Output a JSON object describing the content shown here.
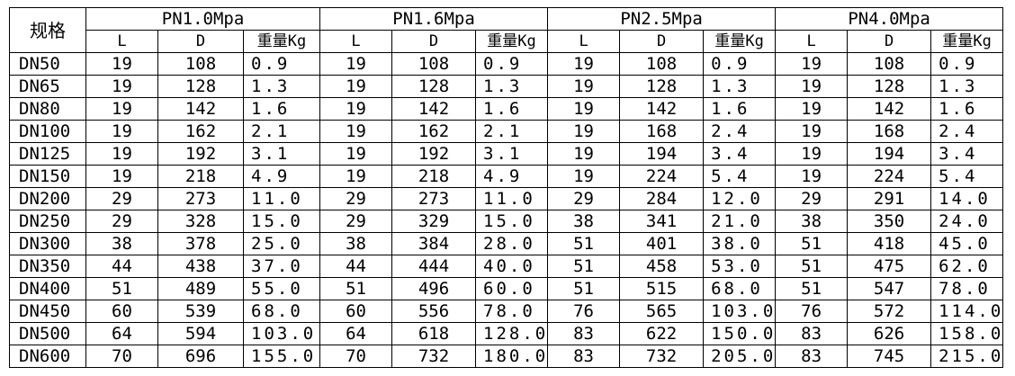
{
  "table": {
    "corner": "规格",
    "groups": [
      {
        "name": "PN1.0Mpa",
        "columns": [
          "L",
          "D",
          "重量Kg"
        ]
      },
      {
        "name": "PN1.6Mpa",
        "columns": [
          "L",
          "D",
          "重量Kg"
        ]
      },
      {
        "name": "PN2.5Mpa",
        "columns": [
          "L",
          "D",
          "重量Kg"
        ]
      },
      {
        "name": "PN4.0Mpa",
        "columns": [
          "L",
          "D",
          "重量Kg"
        ]
      }
    ],
    "rows": [
      [
        "DN50",
        "19",
        "108",
        "0.9",
        "19",
        "108",
        "0.9",
        "19",
        "108",
        "0.9",
        "19",
        "108",
        "0.9"
      ],
      [
        "DN65",
        "19",
        "128",
        "1.3",
        "19",
        "128",
        "1.3",
        "19",
        "128",
        "1.3",
        "19",
        "128",
        "1.3"
      ],
      [
        "DN80",
        "19",
        "142",
        "1.6",
        "19",
        "142",
        "1.6",
        "19",
        "142",
        "1.6",
        "19",
        "142",
        "1.6"
      ],
      [
        "DN100",
        "19",
        "162",
        "2.1",
        "19",
        "162",
        "2.1",
        "19",
        "168",
        "2.4",
        "19",
        "168",
        "2.4"
      ],
      [
        "DN125",
        "19",
        "192",
        "3.1",
        "19",
        "192",
        "3.1",
        "19",
        "194",
        "3.4",
        "19",
        "194",
        "3.4"
      ],
      [
        "DN150",
        "19",
        "218",
        "4.9",
        "19",
        "218",
        "4.9",
        "19",
        "224",
        "5.4",
        "19",
        "224",
        "5.4"
      ],
      [
        "DN200",
        "29",
        "273",
        "11.0",
        "29",
        "273",
        "11.0",
        "29",
        "284",
        "12.0",
        "29",
        "291",
        "14.0"
      ],
      [
        "DN250",
        "29",
        "328",
        "15.0",
        "29",
        "329",
        "15.0",
        "38",
        "341",
        "21.0",
        "38",
        "350",
        "24.0"
      ],
      [
        "DN300",
        "38",
        "378",
        "25.0",
        "38",
        "384",
        "28.0",
        "51",
        "401",
        "38.0",
        "51",
        "418",
        "45.0"
      ],
      [
        "DN350",
        "44",
        "438",
        "37.0",
        "44",
        "444",
        "40.0",
        "51",
        "458",
        "53.0",
        "51",
        "475",
        "62.0"
      ],
      [
        "DN400",
        "51",
        "489",
        "55.0",
        "51",
        "496",
        "60.0",
        "51",
        "515",
        "68.0",
        "51",
        "547",
        "78.0"
      ],
      [
        "DN450",
        "60",
        "539",
        "68.0",
        "60",
        "556",
        "78.0",
        "76",
        "565",
        "103.0",
        "76",
        "572",
        "114.0"
      ],
      [
        "DN500",
        "64",
        "594",
        "103.0",
        "64",
        "618",
        "128.0",
        "83",
        "622",
        "150.0",
        "83",
        "626",
        "158.0"
      ],
      [
        "DN600",
        "70",
        "696",
        "155.0",
        "70",
        "732",
        "180.0",
        "83",
        "732",
        "205.0",
        "83",
        "745",
        "215.0"
      ]
    ]
  }
}
